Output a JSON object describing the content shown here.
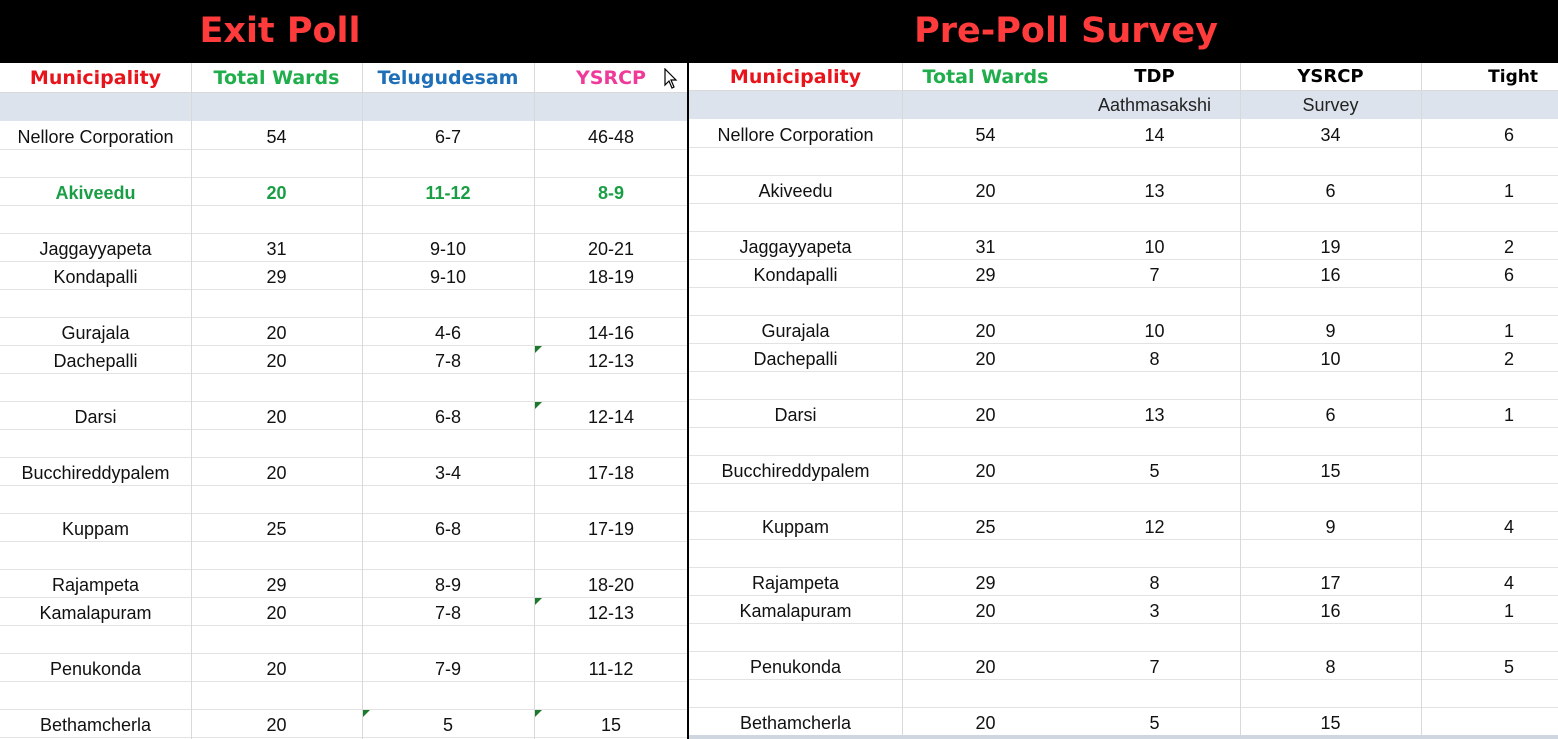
{
  "exit_poll": {
    "title": "Exit Poll",
    "headers": {
      "municipality": "Municipality",
      "total_wards": "Total Wards",
      "telugudesam": "Telugudesam",
      "ysrcp": "YSRCP"
    },
    "rows": [
      {
        "municipality": "Nellore Corporation",
        "total_wards": "54",
        "telugudesam": "6-7",
        "ysrcp": "46-48"
      },
      {
        "municipality": "",
        "total_wards": "",
        "telugudesam": "",
        "ysrcp": ""
      },
      {
        "municipality": "Akiveedu",
        "total_wards": "20",
        "telugudesam": "11-12",
        "ysrcp": "8-9",
        "highlight": true
      },
      {
        "municipality": "",
        "total_wards": "",
        "telugudesam": "",
        "ysrcp": ""
      },
      {
        "municipality": "Jaggayyapeta",
        "total_wards": "31",
        "telugudesam": "9-10",
        "ysrcp": "20-21"
      },
      {
        "municipality": "Kondapalli",
        "total_wards": "29",
        "telugudesam": "9-10",
        "ysrcp": "18-19"
      },
      {
        "municipality": "",
        "total_wards": "",
        "telugudesam": "",
        "ysrcp": ""
      },
      {
        "municipality": "Gurajala",
        "total_wards": "20",
        "telugudesam": "4-6",
        "ysrcp": "14-16"
      },
      {
        "municipality": "Dachepalli",
        "total_wards": "20",
        "telugudesam": "7-8",
        "ysrcp": "12-13"
      },
      {
        "municipality": "",
        "total_wards": "",
        "telugudesam": "",
        "ysrcp": ""
      },
      {
        "municipality": "Darsi",
        "total_wards": "20",
        "telugudesam": "6-8",
        "ysrcp": "12-14"
      },
      {
        "municipality": "",
        "total_wards": "",
        "telugudesam": "",
        "ysrcp": ""
      },
      {
        "municipality": "Bucchireddypalem",
        "total_wards": "20",
        "telugudesam": "3-4",
        "ysrcp": "17-18"
      },
      {
        "municipality": "",
        "total_wards": "",
        "telugudesam": "",
        "ysrcp": ""
      },
      {
        "municipality": "Kuppam",
        "total_wards": "25",
        "telugudesam": "6-8",
        "ysrcp": "17-19"
      },
      {
        "municipality": "",
        "total_wards": "",
        "telugudesam": "",
        "ysrcp": ""
      },
      {
        "municipality": "Rajampeta",
        "total_wards": "29",
        "telugudesam": "8-9",
        "ysrcp": "18-20"
      },
      {
        "municipality": "Kamalapuram",
        "total_wards": "20",
        "telugudesam": "7-8",
        "ysrcp": "12-13"
      },
      {
        "municipality": "",
        "total_wards": "",
        "telugudesam": "",
        "ysrcp": ""
      },
      {
        "municipality": "Penukonda",
        "total_wards": "20",
        "telugudesam": "7-9",
        "ysrcp": "11-12"
      },
      {
        "municipality": "",
        "total_wards": "",
        "telugudesam": "",
        "ysrcp": ""
      },
      {
        "municipality": "Bethamcherla",
        "total_wards": "20",
        "telugudesam": "5",
        "ysrcp": "15"
      }
    ]
  },
  "pre_poll": {
    "title": "Pre-Poll Survey",
    "headers": {
      "municipality": "Municipality",
      "total_wards": "Total Wards",
      "tdp": "TDP",
      "ysrcp": "YSRCP",
      "tight": "Tight"
    },
    "source_line": {
      "left": "Aathmasakshi",
      "right": "Survey"
    },
    "rows": [
      {
        "municipality": "Nellore Corporation",
        "total_wards": "54",
        "tdp": "14",
        "ysrcp": "34",
        "tight": "6"
      },
      {
        "municipality": "",
        "total_wards": "",
        "tdp": "",
        "ysrcp": "",
        "tight": ""
      },
      {
        "municipality": "Akiveedu",
        "total_wards": "20",
        "tdp": "13",
        "ysrcp": "6",
        "tight": "1"
      },
      {
        "municipality": "",
        "total_wards": "",
        "tdp": "",
        "ysrcp": "",
        "tight": ""
      },
      {
        "municipality": "Jaggayyapeta",
        "total_wards": "31",
        "tdp": "10",
        "ysrcp": "19",
        "tight": "2"
      },
      {
        "municipality": "Kondapalli",
        "total_wards": "29",
        "tdp": "7",
        "ysrcp": "16",
        "tight": "6"
      },
      {
        "municipality": "",
        "total_wards": "",
        "tdp": "",
        "ysrcp": "",
        "tight": ""
      },
      {
        "municipality": "Gurajala",
        "total_wards": "20",
        "tdp": "10",
        "ysrcp": "9",
        "tight": "1"
      },
      {
        "municipality": "Dachepalli",
        "total_wards": "20",
        "tdp": "8",
        "ysrcp": "10",
        "tight": "2"
      },
      {
        "municipality": "",
        "total_wards": "",
        "tdp": "",
        "ysrcp": "",
        "tight": ""
      },
      {
        "municipality": "Darsi",
        "total_wards": "20",
        "tdp": "13",
        "ysrcp": "6",
        "tight": "1"
      },
      {
        "municipality": "",
        "total_wards": "",
        "tdp": "",
        "ysrcp": "",
        "tight": ""
      },
      {
        "municipality": "Bucchireddypalem",
        "total_wards": "20",
        "tdp": "5",
        "ysrcp": "15",
        "tight": ""
      },
      {
        "municipality": "",
        "total_wards": "",
        "tdp": "",
        "ysrcp": "",
        "tight": ""
      },
      {
        "municipality": "Kuppam",
        "total_wards": "25",
        "tdp": "12",
        "ysrcp": "9",
        "tight": "4"
      },
      {
        "municipality": "",
        "total_wards": "",
        "tdp": "",
        "ysrcp": "",
        "tight": ""
      },
      {
        "municipality": "Rajampeta",
        "total_wards": "29",
        "tdp": "8",
        "ysrcp": "17",
        "tight": "4"
      },
      {
        "municipality": "Kamalapuram",
        "total_wards": "20",
        "tdp": "3",
        "ysrcp": "16",
        "tight": "1"
      },
      {
        "municipality": "",
        "total_wards": "",
        "tdp": "",
        "ysrcp": "",
        "tight": ""
      },
      {
        "municipality": "Penukonda",
        "total_wards": "20",
        "tdp": "7",
        "ysrcp": "8",
        "tight": "5"
      },
      {
        "municipality": "",
        "total_wards": "",
        "tdp": "",
        "ysrcp": "",
        "tight": ""
      },
      {
        "municipality": "Bethamcherla",
        "total_wards": "20",
        "tdp": "5",
        "ysrcp": "15",
        "tight": ""
      }
    ]
  },
  "colors": {
    "banner_bg": "#000000",
    "title_red": "#ff3b3b",
    "header_red": "#e8141b",
    "header_green": "#1fae4b",
    "header_blue": "#1f6fb8",
    "header_pink": "#f03a9a",
    "highlight_green": "#1a9e45",
    "band_gray": "#dde3ec",
    "comment_marker": "#1c7a2c"
  },
  "icons": {
    "cursor": "mouse-pointer-icon",
    "cell_marker": "comment-indicator-icon"
  }
}
